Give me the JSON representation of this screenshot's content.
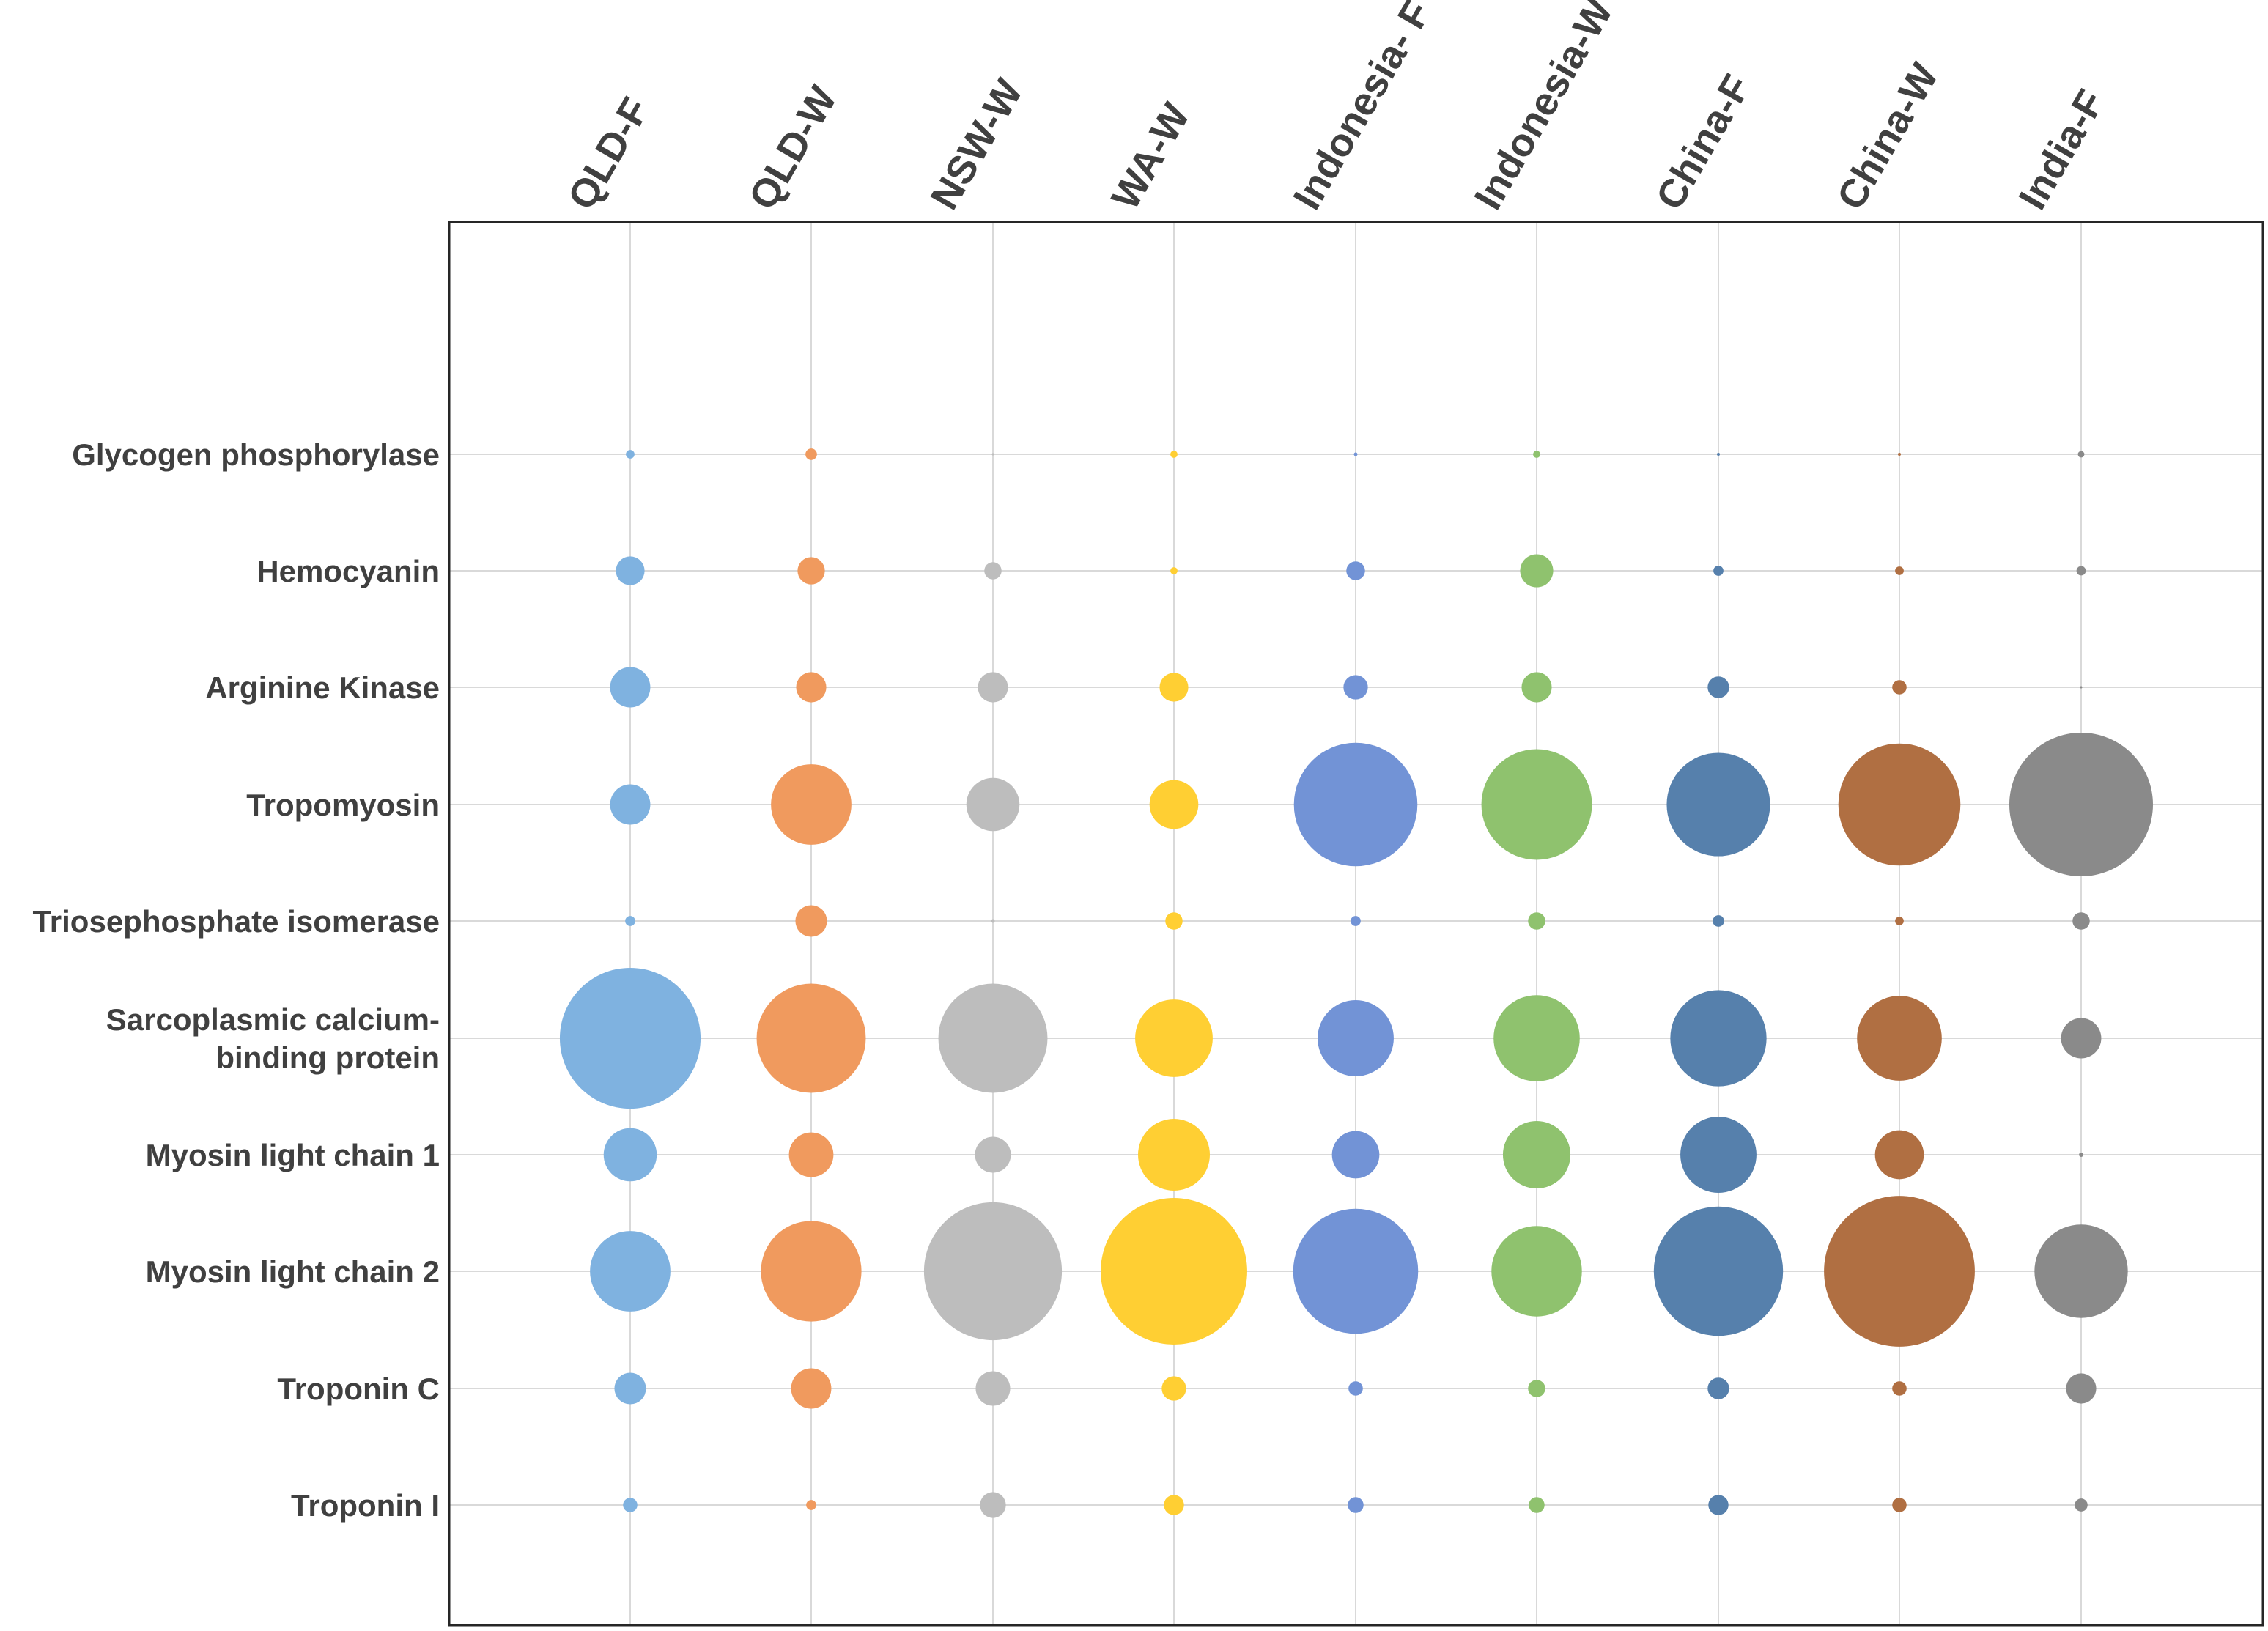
{
  "chart_data": {
    "type": "bubble",
    "columns": [
      "QLD-F",
      "QLD-W",
      "NSW-W",
      "WA-W",
      "Indonesia- F",
      "Indonesia-W",
      "China-F",
      "China-W",
      "India-F"
    ],
    "rows": [
      [
        "Glycogen phosphorylase"
      ],
      [
        "Hemocyanin"
      ],
      [
        "Arginine Kinase"
      ],
      [
        "Tropomyosin"
      ],
      [
        "Triosephosphate isomerase"
      ],
      [
        "Sarcoplasmic calcium-",
        "binding protein"
      ],
      [
        "Myosin light chain 1"
      ],
      [
        "Myosin light chain 2"
      ],
      [
        "Troponin C"
      ],
      [
        "Troponin I"
      ]
    ],
    "column_colors": [
      "#7fb2e0",
      "#f09a5e",
      "#bdbdbd",
      "#ffcf33",
      "#7293d6",
      "#8fc26e",
      "#5680ac",
      "#b06f42",
      "#8a8a8a"
    ],
    "value_note": "relative bubble size (diameter, arbitrary units)",
    "values": [
      [
        0.12,
        0.16,
        0.0,
        0.1,
        0.05,
        0.1,
        0.02,
        0.03,
        0.09
      ],
      [
        0.4,
        0.38,
        0.24,
        0.1,
        0.26,
        0.46,
        0.14,
        0.12,
        0.13
      ],
      [
        0.56,
        0.42,
        0.42,
        0.4,
        0.34,
        0.42,
        0.3,
        0.2,
        0.0
      ],
      [
        0.56,
        1.12,
        0.74,
        0.68,
        1.72,
        1.54,
        1.44,
        1.7,
        2.0
      ],
      [
        0.14,
        0.44,
        0.05,
        0.24,
        0.14,
        0.24,
        0.16,
        0.12,
        0.24
      ],
      [
        1.96,
        1.52,
        1.52,
        1.08,
        1.06,
        1.2,
        1.34,
        1.18,
        0.56
      ],
      [
        0.74,
        0.62,
        0.5,
        1.0,
        0.66,
        0.94,
        1.06,
        0.68,
        0.06
      ],
      [
        1.12,
        1.4,
        1.92,
        2.04,
        1.74,
        1.26,
        1.8,
        2.1,
        1.3
      ],
      [
        0.44,
        0.56,
        0.48,
        0.34,
        0.2,
        0.24,
        0.3,
        0.2,
        0.42
      ],
      [
        0.2,
        0.14,
        0.36,
        0.28,
        0.22,
        0.22,
        0.28,
        0.2,
        0.18
      ]
    ],
    "grid": true,
    "legend": "none"
  }
}
